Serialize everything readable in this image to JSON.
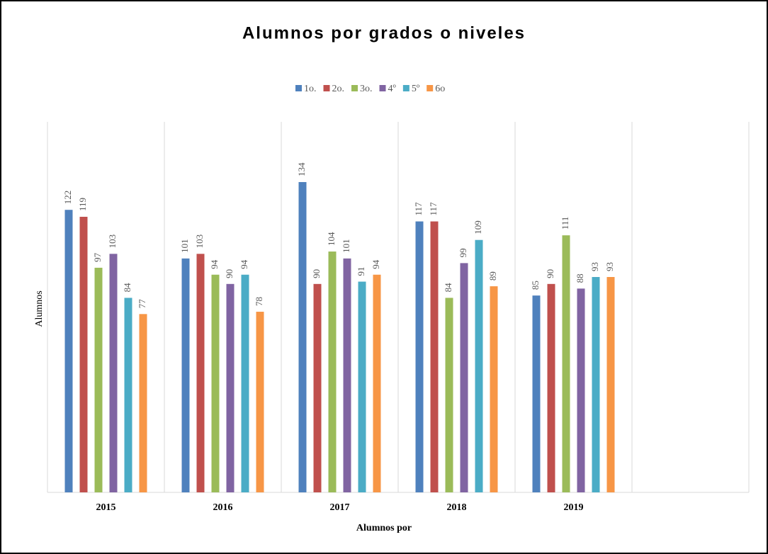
{
  "chart_data": {
    "type": "bar",
    "title": "Alumnos por grados o niveles",
    "x_label": "Alumnos por",
    "y_label": "Alumnos",
    "categories": [
      "2015",
      "2016",
      "2017",
      "2018",
      "2019",
      null
    ],
    "series": [
      {
        "name": "1o.",
        "color": "#4f81bd",
        "values": [
          122,
          101,
          134,
          117,
          85,
          null
        ]
      },
      {
        "name": "2o.",
        "color": "#c0504d",
        "values": [
          119,
          103,
          90,
          117,
          90,
          null
        ]
      },
      {
        "name": "3o.",
        "color": "#9bbb59",
        "values": [
          97,
          94,
          104,
          84,
          111,
          null
        ]
      },
      {
        "name": "4º",
        "color": "#8064a2",
        "values": [
          103,
          90,
          101,
          99,
          88,
          null
        ]
      },
      {
        "name": "5º",
        "color": "#4bacc6",
        "values": [
          84,
          94,
          91,
          109,
          93,
          null
        ]
      },
      {
        "name": "6o",
        "color": "#f79646",
        "values": [
          77,
          78,
          94,
          89,
          93,
          null
        ]
      }
    ],
    "ylim": [
      0,
      160
    ],
    "legend": "top"
  }
}
